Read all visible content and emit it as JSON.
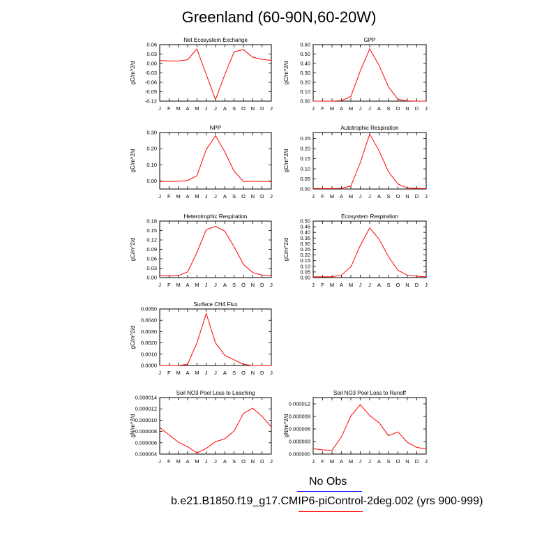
{
  "title": "Greenland (60-90N,60-20W)",
  "months": [
    "J",
    "F",
    "M",
    "A",
    "M",
    "J",
    "J",
    "A",
    "S",
    "O",
    "N",
    "D",
    "J"
  ],
  "colors": {
    "model_line": "#ff0000",
    "obs_line": "#0000ff"
  },
  "legend": {
    "obs_label": "No Obs",
    "model_label": "b.e21.B1850.f19_g17.CMIP6-piControl-2deg.002 (yrs 900-999)"
  },
  "chart_data": [
    {
      "type": "line",
      "title": "Net Ecosystem Exchange",
      "ylabel": "gC/m^2/d",
      "ylim": [
        -0.12,
        0.06
      ],
      "yticks": [
        "-0.12",
        "-0.09",
        "-0.06",
        "-0.03",
        "0.00",
        "0.03",
        "0.06"
      ],
      "ytick_values": [
        -0.12,
        -0.09,
        -0.06,
        -0.03,
        0.0,
        0.03,
        0.06
      ],
      "values": [
        0.01,
        0.008,
        0.008,
        0.012,
        0.046,
        -0.035,
        -0.115,
        -0.035,
        0.037,
        0.044,
        0.02,
        0.013,
        0.01
      ]
    },
    {
      "type": "line",
      "title": "GPP",
      "ylabel": "gC/m^2/d",
      "ylim": [
        0,
        0.6
      ],
      "yticks": [
        "0.00",
        "0.10",
        "0.20",
        "0.30",
        "0.40",
        "0.50",
        "0.60"
      ],
      "ytick_values": [
        0,
        0.1,
        0.2,
        0.3,
        0.4,
        0.5,
        0.6
      ],
      "values": [
        0.0,
        0.0,
        0.0,
        0.005,
        0.05,
        0.32,
        0.555,
        0.38,
        0.15,
        0.02,
        0.003,
        0.0,
        0.0
      ]
    },
    {
      "type": "line",
      "title": "NPP",
      "ylabel": "gC/m^2/d",
      "ylim": [
        -0.05,
        0.3
      ],
      "yticks": [
        "0.00",
        "0.10",
        "0.20",
        "0.30"
      ],
      "ytick_values": [
        0,
        0.1,
        0.2,
        0.3
      ],
      "values": [
        -0.003,
        -0.003,
        -0.002,
        0.003,
        0.032,
        0.195,
        0.28,
        0.18,
        0.06,
        -0.003,
        -0.003,
        -0.003,
        -0.003
      ]
    },
    {
      "type": "line",
      "title": "Autotrophic Respiration",
      "ylabel": "gC/m^2/d",
      "ylim": [
        0,
        0.28
      ],
      "yticks": [
        "0.00",
        "0.05",
        "0.10",
        "0.15",
        "0.20",
        "0.25"
      ],
      "ytick_values": [
        0,
        0.05,
        0.1,
        0.15,
        0.2,
        0.25
      ],
      "values": [
        0.002,
        0.002,
        0.002,
        0.003,
        0.015,
        0.13,
        0.272,
        0.19,
        0.085,
        0.025,
        0.005,
        0.003,
        0.002
      ]
    },
    {
      "type": "line",
      "title": "Heterotrophic Respiration",
      "ylabel": "gC/m^2/d",
      "ylim": [
        0,
        0.18
      ],
      "yticks": [
        "0.00",
        "0.03",
        "0.06",
        "0.09",
        "0.12",
        "0.15",
        "0.18"
      ],
      "ytick_values": [
        0,
        0.03,
        0.06,
        0.09,
        0.12,
        0.15,
        0.18
      ],
      "values": [
        0.006,
        0.005,
        0.006,
        0.018,
        0.08,
        0.153,
        0.163,
        0.148,
        0.098,
        0.042,
        0.016,
        0.008,
        0.006
      ]
    },
    {
      "type": "line",
      "title": "Ecosystem Respiration",
      "ylabel": "gC/m^2/d",
      "ylim": [
        0,
        0.5
      ],
      "yticks": [
        "0.00",
        "0.05",
        "0.10",
        "0.15",
        "0.20",
        "0.25",
        "0.30",
        "0.35",
        "0.40",
        "0.45",
        "0.50"
      ],
      "ytick_values": [
        0,
        0.05,
        0.1,
        0.15,
        0.2,
        0.25,
        0.3,
        0.35,
        0.4,
        0.45,
        0.5
      ],
      "values": [
        0.007,
        0.007,
        0.008,
        0.022,
        0.095,
        0.283,
        0.44,
        0.34,
        0.185,
        0.065,
        0.022,
        0.012,
        0.007
      ]
    },
    {
      "type": "line",
      "title": "Surface CH4 Flux",
      "ylabel": "gC/m^2/d",
      "ylim": [
        0,
        0.005
      ],
      "yticks": [
        "0.0000",
        "0.0010",
        "0.0020",
        "0.0030",
        "0.0040",
        "0.0050"
      ],
      "ytick_values": [
        0,
        0.001,
        0.002,
        0.003,
        0.004,
        0.005
      ],
      "values": [
        0.0,
        0.0,
        0.0,
        0.0001,
        0.002,
        0.0046,
        0.002,
        0.0009,
        0.0005,
        0.0001,
        0.0,
        0.0,
        0.0
      ]
    },
    {
      "type": "line",
      "title": "Soil NO3 Pool Loss to Leaching",
      "ylabel": "gN/m^2/d",
      "ylim": [
        4e-06,
        1.4e-05
      ],
      "yticks": [
        "0.000004",
        "0.000006",
        "0.000008",
        "0.000010",
        "0.000012",
        "0.000014"
      ],
      "ytick_values": [
        4e-06,
        6e-06,
        8e-06,
        1e-05,
        1.2e-05,
        1.4e-05
      ],
      "values": [
        8.7e-06,
        7.4e-06,
        6.1e-06,
        5.3e-06,
        4.2e-06,
        5e-06,
        6.2e-06,
        6.7e-06,
        8.1e-06,
        1.12e-05,
        1.21e-05,
        1.07e-05,
        8.8e-06
      ]
    },
    {
      "type": "line",
      "title": "Soil NO3 Pool Loss to Runoff",
      "ylabel": "gN/m^2/d",
      "ylim": [
        0,
        1.35e-05
      ],
      "yticks": [
        "0.000000",
        "0.000003",
        "0.000006",
        "0.000009",
        "0.000012"
      ],
      "ytick_values": [
        0,
        3e-06,
        6e-06,
        9e-06,
        1.2e-05
      ],
      "values": [
        1.3e-06,
        1e-06,
        9e-07,
        4.1e-06,
        9.1e-06,
        1.18e-05,
        9.2e-06,
        7.5e-06,
        4.4e-06,
        5.3e-06,
        2.8e-06,
        1.6e-06,
        1.2e-06
      ]
    }
  ]
}
